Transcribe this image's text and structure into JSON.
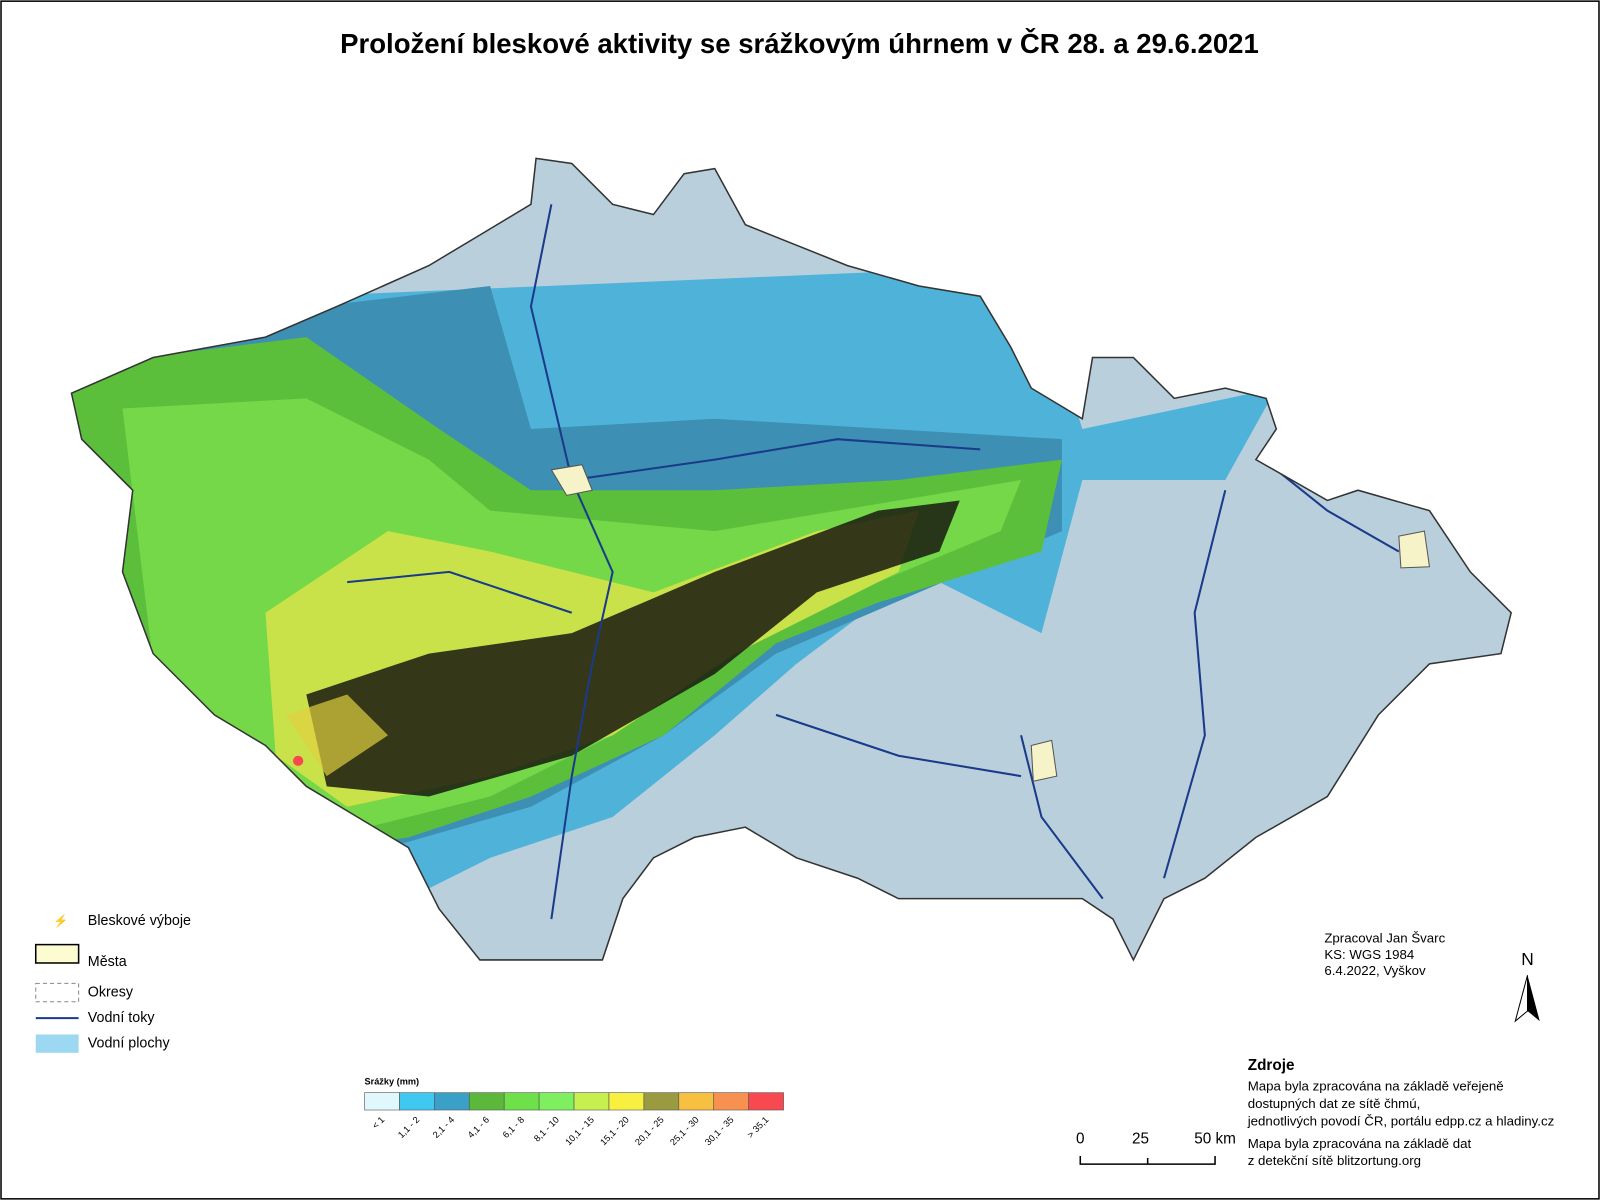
{
  "title": "Proložení bleskové aktivity se srážkovým úhrnem v  ČR 28. a 29.6.2021",
  "legend": {
    "items": [
      "Bleskové výboje",
      "Města",
      "Okresy",
      "Vodní toky",
      "Vodní plochy"
    ]
  },
  "precipitation_legend": {
    "title": "Srážky (mm)",
    "classes": [
      {
        "label": "< 1",
        "color": "#e0f7fb"
      },
      {
        "label": "1,1 - 2",
        "color": "#3fc8f0"
      },
      {
        "label": "2,1 - 4",
        "color": "#3aa0c8"
      },
      {
        "label": "4,1 - 6",
        "color": "#5cb83a"
      },
      {
        "label": "6,1 - 8",
        "color": "#6de04a"
      },
      {
        "label": "8,1 - 10",
        "color": "#7ef060"
      },
      {
        "label": "10,1 - 15",
        "color": "#c6f050"
      },
      {
        "label": "15,1 - 20",
        "color": "#f8f040"
      },
      {
        "label": "20,1 - 25",
        "color": "#9a9a40"
      },
      {
        "label": "25,1 - 30",
        "color": "#f8c040"
      },
      {
        "label": "30,1 - 35",
        "color": "#f89050"
      },
      {
        "label": "> 35,1",
        "color": "#f84850"
      }
    ]
  },
  "credits": [
    "Zpracoval Jan Švarc",
    "KS: WGS 1984",
    "6.4.2022, Vyškov"
  ],
  "sources": {
    "title": "Zdroje",
    "lines": [
      "Mapa byla zpracována na základě veřejeně",
      "dostupných dat ze sítě čhmú,",
      "jednotlivých povodí ČR, portálu edpp.cz a hladiny.cz",
      "Mapa byla zpracována na základě dat",
      "z detekční sítě blitzortung.org"
    ]
  },
  "scale_bar": {
    "labels": [
      "0",
      "25",
      "50 km"
    ]
  },
  "north_arrow": "N"
}
